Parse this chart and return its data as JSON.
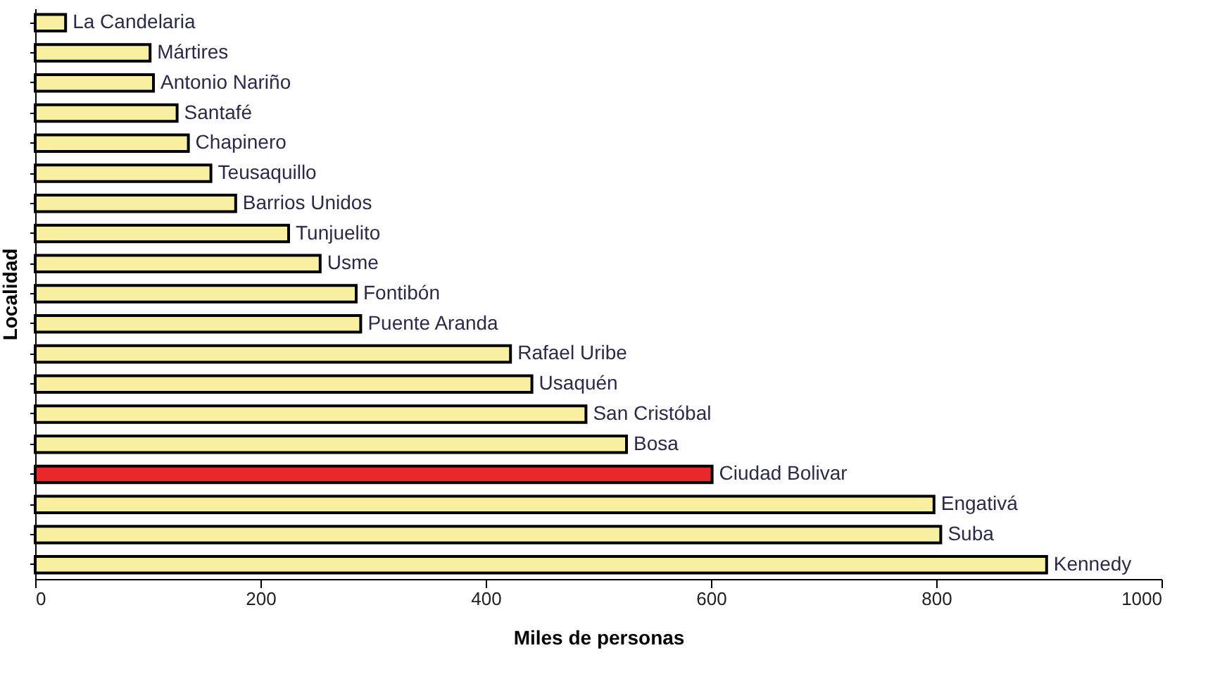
{
  "chart_data": {
    "type": "bar",
    "orientation": "horizontal",
    "xlabel": "Miles de personas",
    "ylabel": "Localidad",
    "categories": [
      "La Candelaria",
      "Mártires",
      "Antonio Nariño",
      "Santafé",
      "Chapinero",
      "Teusaquillo",
      "Barrios Unidos",
      "Tunjuelito",
      "Usme",
      "Fontibón",
      "Puente Aranda",
      "Rafael Uribe",
      "Usaquén",
      "San Cristóbal",
      "Bosa",
      "Ciudad Bolivar",
      "Engativá",
      "Suba",
      "Kennedy"
    ],
    "values": [
      27,
      102,
      105,
      126,
      136,
      156,
      178,
      225,
      253,
      285,
      289,
      422,
      441,
      489,
      525,
      601,
      798,
      804,
      898
    ],
    "colors": [
      "#f8f0a0",
      "#f8f0a0",
      "#f8f0a0",
      "#f8f0a0",
      "#f8f0a0",
      "#f8f0a0",
      "#f8f0a0",
      "#f8f0a0",
      "#f8f0a0",
      "#f8f0a0",
      "#f8f0a0",
      "#f8f0a0",
      "#f8f0a0",
      "#f8f0a0",
      "#f8f0a0",
      "#e8282a",
      "#f8f0a0",
      "#f8f0a0",
      "#f8f0a0"
    ],
    "xlim": [
      0,
      1000
    ],
    "xticks": [
      0,
      200,
      400,
      600,
      800,
      1000
    ]
  }
}
